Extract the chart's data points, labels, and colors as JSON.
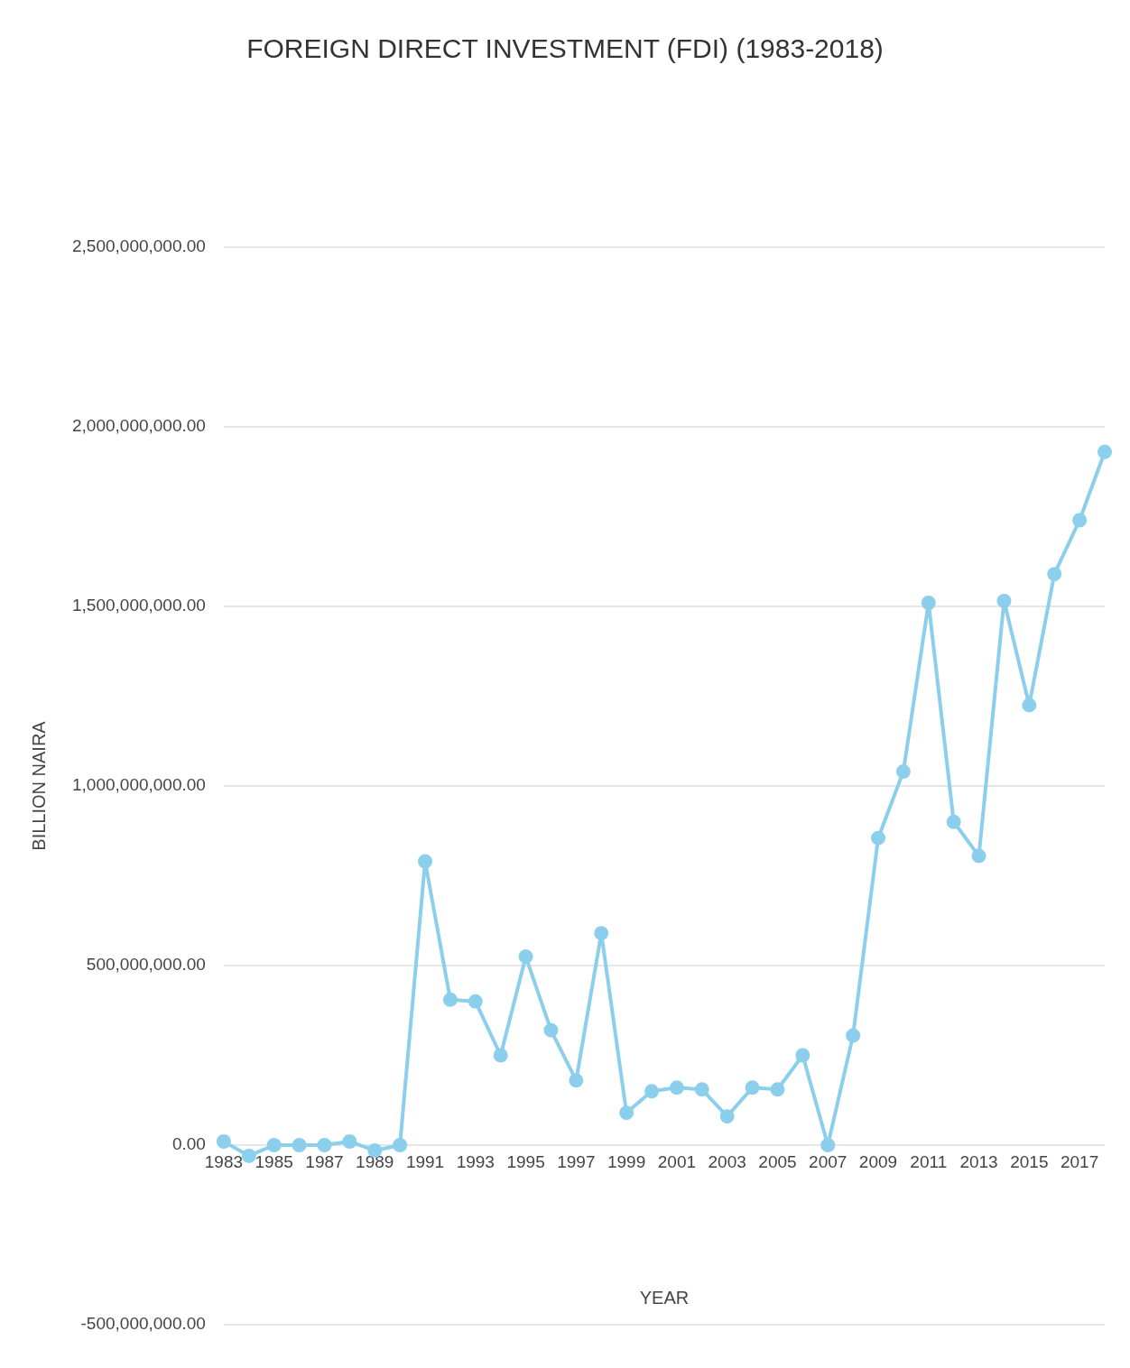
{
  "chart_data": {
    "type": "line",
    "title": "FOREIGN DIRECT INVESTMENT (FDI) (1983-2018)",
    "xlabel": "YEAR",
    "ylabel": "BILLION NAIRA",
    "categories": [
      "1983",
      null,
      "1985",
      null,
      "1987",
      null,
      "1989",
      null,
      "1991",
      null,
      "1993",
      null,
      "1995",
      null,
      "1997",
      null,
      "1999",
      null,
      "2001",
      null,
      "2003",
      null,
      "2005",
      null,
      "2007",
      null,
      "2009",
      null,
      "2011",
      null,
      "2013",
      null,
      "2015",
      null,
      "2017",
      null
    ],
    "series": [
      {
        "color": "#8ccfec",
        "values": [
          10000000,
          -30000000,
          0,
          0,
          0,
          10000000,
          -15000000,
          0,
          790000000,
          405000000,
          400000000,
          250000000,
          525000000,
          320000000,
          180000000,
          590000000,
          90000000,
          150000000,
          160000000,
          155000000,
          80000000,
          160000000,
          155000000,
          250000000,
          0,
          305000000,
          855000000,
          1040000000,
          1510000000,
          900000000,
          805000000,
          1515000000,
          1225000000,
          1590000000,
          1740000000,
          1930000000
        ]
      }
    ],
    "ylim": [
      -500000000,
      2500000000
    ],
    "yticks": [
      {
        "value": -500000000,
        "label": "-500,000,000.00"
      },
      {
        "value": 0,
        "label": "0.00"
      },
      {
        "value": 500000000,
        "label": "500,000,000.00"
      },
      {
        "value": 1000000000,
        "label": "1,000,000,000.00"
      },
      {
        "value": 1500000000,
        "label": "1,500,000,000.00"
      },
      {
        "value": 2000000000,
        "label": "2,000,000,000.00"
      },
      {
        "value": 2500000000,
        "label": "2,500,000,000.00"
      }
    ],
    "grid": "y",
    "legend": false,
    "marker": "circle",
    "line_style": "solid"
  }
}
